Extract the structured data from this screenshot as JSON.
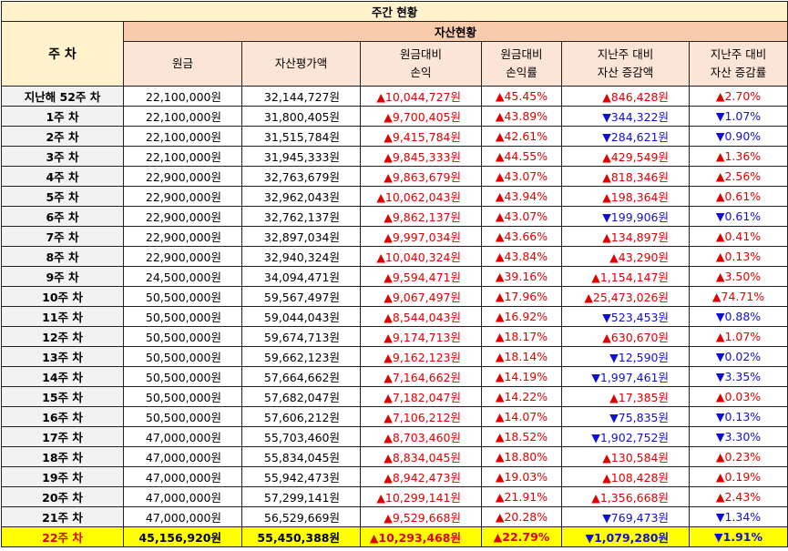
{
  "title": "주간 현황",
  "header": {
    "week": "주 차",
    "group": "자산현황",
    "cols": [
      "원금",
      "자산평가액",
      "원금대비\n손익",
      "원금대비\n손익률",
      "지난주 대비\n자산 증감액",
      "지난주 대비\n자산 증감률"
    ]
  },
  "colors": {
    "up": "#e00000",
    "down": "#1010d0",
    "highlight": "#ffff00"
  },
  "rows": [
    {
      "week": "지난해 52주 차",
      "principal": "22,100,000원",
      "value": "32,144,727원",
      "pl": "▲10,044,727원",
      "plr": "▲45.45%",
      "chg": "▲846,428원",
      "chgr": "▲2.70%",
      "dir": "up"
    },
    {
      "week": "1주 차",
      "principal": "22,100,000원",
      "value": "31,800,405원",
      "pl": "▲9,700,405원",
      "plr": "▲43.89%",
      "chg": "▼344,322원",
      "chgr": "▼1.07%",
      "dir": "down"
    },
    {
      "week": "2주 차",
      "principal": "22,100,000원",
      "value": "31,515,784원",
      "pl": "▲9,415,784원",
      "plr": "▲42.61%",
      "chg": "▼284,621원",
      "chgr": "▼0.90%",
      "dir": "down"
    },
    {
      "week": "3주 차",
      "principal": "22,100,000원",
      "value": "31,945,333원",
      "pl": "▲9,845,333원",
      "plr": "▲44.55%",
      "chg": "▲429,549원",
      "chgr": "▲1.36%",
      "dir": "up"
    },
    {
      "week": "4주 차",
      "principal": "22,900,000원",
      "value": "32,763,679원",
      "pl": "▲9,863,679원",
      "plr": "▲43.07%",
      "chg": "▲818,346원",
      "chgr": "▲2.56%",
      "dir": "up"
    },
    {
      "week": "5주 차",
      "principal": "22,900,000원",
      "value": "32,962,043원",
      "pl": "▲10,062,043원",
      "plr": "▲43.94%",
      "chg": "▲198,364원",
      "chgr": "▲0.61%",
      "dir": "up"
    },
    {
      "week": "6주 차",
      "principal": "22,900,000원",
      "value": "32,762,137원",
      "pl": "▲9,862,137원",
      "plr": "▲43.07%",
      "chg": "▼199,906원",
      "chgr": "▼0.61%",
      "dir": "down"
    },
    {
      "week": "7주 차",
      "principal": "22,900,000원",
      "value": "32,897,034원",
      "pl": "▲9,997,034원",
      "plr": "▲43.66%",
      "chg": "▲134,897원",
      "chgr": "▲0.41%",
      "dir": "up"
    },
    {
      "week": "8주 차",
      "principal": "22,900,000원",
      "value": "32,940,324원",
      "pl": "▲10,040,324원",
      "plr": "▲43.84%",
      "chg": "▲43,290원",
      "chgr": "▲0.13%",
      "dir": "up"
    },
    {
      "week": "9주 차",
      "principal": "24,500,000원",
      "value": "34,094,471원",
      "pl": "▲9,594,471원",
      "plr": "▲39.16%",
      "chg": "▲1,154,147원",
      "chgr": "▲3.50%",
      "dir": "up"
    },
    {
      "week": "10주 차",
      "principal": "50,500,000원",
      "value": "59,567,497원",
      "pl": "▲9,067,497원",
      "plr": "▲17.96%",
      "chg": "▲25,473,026원",
      "chgr": "▲74.71%",
      "dir": "up"
    },
    {
      "week": "11주 차",
      "principal": "50,500,000원",
      "value": "59,044,043원",
      "pl": "▲8,544,043원",
      "plr": "▲16.92%",
      "chg": "▼523,453원",
      "chgr": "▼0.88%",
      "dir": "down"
    },
    {
      "week": "12주 차",
      "principal": "50,500,000원",
      "value": "59,674,713원",
      "pl": "▲9,174,713원",
      "plr": "▲18.17%",
      "chg": "▲630,670원",
      "chgr": "▲1.07%",
      "dir": "up"
    },
    {
      "week": "13주 차",
      "principal": "50,500,000원",
      "value": "59,662,123원",
      "pl": "▲9,162,123원",
      "plr": "▲18.14%",
      "chg": "▼12,590원",
      "chgr": "▼0.02%",
      "dir": "down"
    },
    {
      "week": "14주 차",
      "principal": "50,500,000원",
      "value": "57,664,662원",
      "pl": "▲7,164,662원",
      "plr": "▲14.19%",
      "chg": "▼1,997,461원",
      "chgr": "▼3.35%",
      "dir": "down"
    },
    {
      "week": "15주 차",
      "principal": "50,500,000원",
      "value": "57,682,047원",
      "pl": "▲7,182,047원",
      "plr": "▲14.22%",
      "chg": "▲17,385원",
      "chgr": "▲0.03%",
      "dir": "up"
    },
    {
      "week": "16주 차",
      "principal": "50,500,000원",
      "value": "57,606,212원",
      "pl": "▲7,106,212원",
      "plr": "▲14.07%",
      "chg": "▼75,835원",
      "chgr": "▼0.13%",
      "dir": "down"
    },
    {
      "week": "17주 차",
      "principal": "47,000,000원",
      "value": "55,703,460원",
      "pl": "▲8,703,460원",
      "plr": "▲18.52%",
      "chg": "▼1,902,752원",
      "chgr": "▼3.30%",
      "dir": "down"
    },
    {
      "week": "18주 차",
      "principal": "47,000,000원",
      "value": "55,834,045원",
      "pl": "▲8,834,045원",
      "plr": "▲18.80%",
      "chg": "▲130,584원",
      "chgr": "▲0.23%",
      "dir": "up"
    },
    {
      "week": "19주 차",
      "principal": "47,000,000원",
      "value": "55,942,473원",
      "pl": "▲8,942,473원",
      "plr": "▲19.03%",
      "chg": "▲108,428원",
      "chgr": "▲0.19%",
      "dir": "up"
    },
    {
      "week": "20주 차",
      "principal": "47,000,000원",
      "value": "57,299,141원",
      "pl": "▲10,299,141원",
      "plr": "▲21.91%",
      "chg": "▲1,356,668원",
      "chgr": "▲2.43%",
      "dir": "up"
    },
    {
      "week": "21주 차",
      "principal": "47,000,000원",
      "value": "56,529,669원",
      "pl": "▲9,529,668원",
      "plr": "▲20.28%",
      "chg": "▼769,473원",
      "chgr": "▼1.34%",
      "dir": "down"
    },
    {
      "week": "22주 차",
      "principal": "45,156,920원",
      "value": "55,450,388원",
      "pl": "▲10,293,468원",
      "plr": "▲22.79%",
      "chg": "▼1,079,280원",
      "chgr": "▼1.91%",
      "dir": "down",
      "highlight": true
    }
  ]
}
